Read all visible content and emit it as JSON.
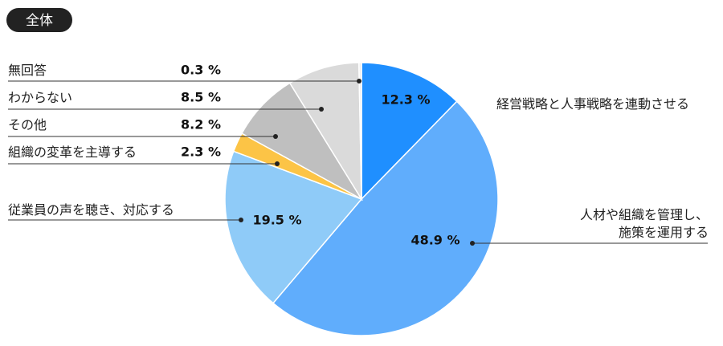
{
  "chart_data": {
    "type": "pie",
    "title": "全体",
    "categories": [
      "経営戦略と人事戦略を連動させる",
      "人材や組織を管理し、\n施策を運用する",
      "従業員の声を聴き、対応する",
      "組織の変革を主導する",
      "その他",
      "わからない",
      "無回答"
    ],
    "values": [
      12.3,
      48.9,
      19.5,
      2.3,
      8.2,
      8.5,
      0.3
    ],
    "value_labels": [
      "12.3 %",
      "48.9 %",
      "19.5 %",
      "2.3 %",
      "8.2 %",
      "8.5 %",
      "0.3 %"
    ],
    "colors": [
      "#1f8fff",
      "#60adfc",
      "#8fcbf8",
      "#fcc446",
      "#bfbfbf",
      "#dadada",
      "#eeeeee"
    ]
  }
}
